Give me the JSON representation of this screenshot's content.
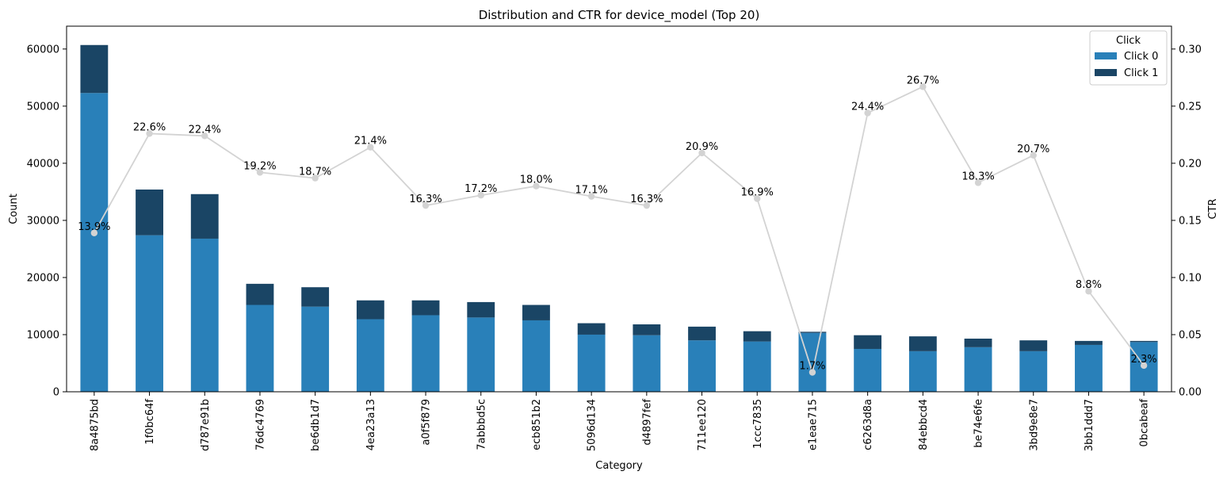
{
  "chart_data": {
    "type": "bar",
    "title": "Distribution and CTR for device_model (Top 20)",
    "xlabel": "Category",
    "ylabel": "Count",
    "y2label": "CTR",
    "ylim": [
      0,
      64000
    ],
    "y2lim": [
      0,
      0.32
    ],
    "yticks": [
      0,
      10000,
      20000,
      30000,
      40000,
      50000,
      60000
    ],
    "y2ticks": [
      "0.00",
      "0.05",
      "0.10",
      "0.15",
      "0.20",
      "0.25",
      "0.30"
    ],
    "categories": [
      "8a4875bd",
      "1f0bc64f",
      "d787e91b",
      "76dc4769",
      "be6db1d7",
      "4ea23a13",
      "a0f5f879",
      "7abbbd5c",
      "ecb851b2",
      "5096d134",
      "d4897fef",
      "711ee120",
      "1ccc7835",
      "e1eae715",
      "c6263d8a",
      "84ebbcd4",
      "be74e6fe",
      "3bd9e8e7",
      "3bb1ddd7",
      "0bcabeaf"
    ],
    "series": [
      {
        "name": "Click 0",
        "color": "#2980b9",
        "values": [
          52300,
          27400,
          26800,
          15200,
          14900,
          12700,
          13400,
          13000,
          12500,
          10000,
          9900,
          9000,
          8800,
          10300,
          7500,
          7100,
          7800,
          7100,
          8200,
          8700
        ]
      },
      {
        "name": "Click 1",
        "color": "#1a4565",
        "values": [
          8400,
          8000,
          7800,
          3700,
          3400,
          3300,
          2600,
          2700,
          2700,
          2000,
          1900,
          2400,
          1800,
          200,
          2400,
          2600,
          1500,
          1900,
          700,
          200
        ]
      }
    ],
    "ctr": {
      "values": [
        0.139,
        0.226,
        0.224,
        0.192,
        0.187,
        0.214,
        0.163,
        0.172,
        0.18,
        0.171,
        0.163,
        0.209,
        0.169,
        0.017,
        0.244,
        0.267,
        0.183,
        0.207,
        0.088,
        0.023
      ],
      "labels": [
        "13.9%",
        "22.6%",
        "22.4%",
        "19.2%",
        "18.7%",
        "21.4%",
        "16.3%",
        "17.2%",
        "18.0%",
        "17.1%",
        "16.3%",
        "20.9%",
        "16.9%",
        "1.7%",
        "24.4%",
        "26.7%",
        "18.3%",
        "20.7%",
        "8.8%",
        "2.3%"
      ],
      "color": "#d3d3d3"
    },
    "legend": {
      "title": "Click",
      "position": "top-right"
    }
  }
}
